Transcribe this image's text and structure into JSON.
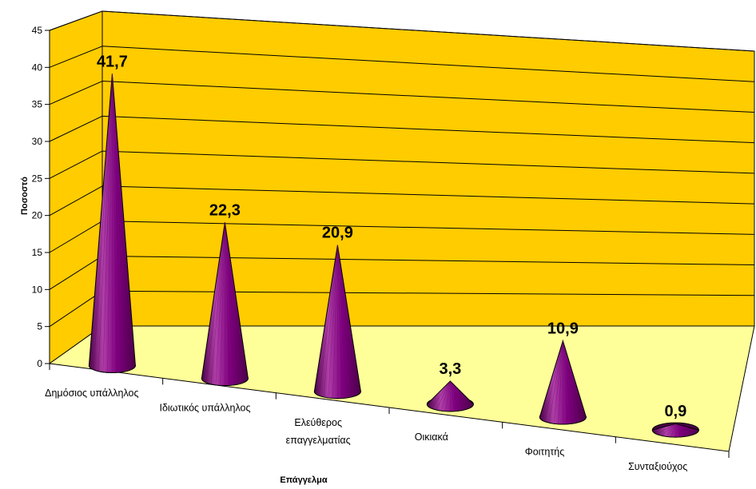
{
  "chart_data": {
    "type": "bar",
    "style": "3d-cone",
    "title": "",
    "xlabel": "Επάγγελμα",
    "ylabel": "Ποσοστό",
    "categories": [
      [
        "Δημόσιος υπάλληλος"
      ],
      [
        "Ιδιωτικός υπάλληλος"
      ],
      [
        "Ελεύθερος",
        "επαγγελματίας"
      ],
      [
        "Οικιακά"
      ],
      [
        "Φοιτητής"
      ],
      [
        "Συνταξιούχος"
      ]
    ],
    "values": [
      41.7,
      22.3,
      20.9,
      3.3,
      10.9,
      0.9
    ],
    "data_labels": [
      "41,7",
      "22,3",
      "20,9",
      "3,3",
      "10,9",
      "0,9"
    ],
    "yticks": [
      0,
      5,
      10,
      15,
      20,
      25,
      30,
      35,
      40,
      45
    ],
    "ylim": [
      0,
      45
    ],
    "grid": true,
    "legend": "none",
    "colors": {
      "back_wall": "#FFCC00",
      "floor": "#FFFF99",
      "cone": "#800080",
      "cone_dark": "#4B0048",
      "cone_light": "#B040A8",
      "gridline": "#000000"
    }
  }
}
